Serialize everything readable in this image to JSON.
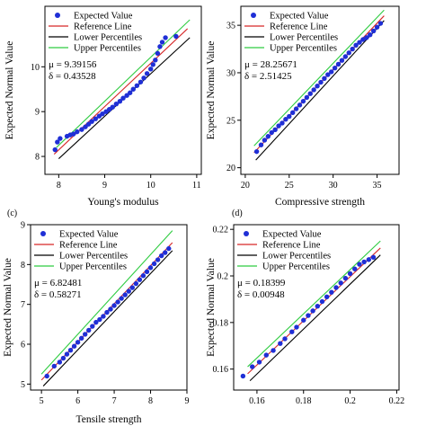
{
  "colors": {
    "points": "#1f2fd6",
    "reference": "#d62728",
    "lower": "#000000",
    "upper": "#2ecc40"
  },
  "chart_data": [
    {
      "type": "scatter",
      "panel_label": "",
      "xlabel": "Young's modulus",
      "ylabel": "Expected Normal Value",
      "xlim": [
        7.7,
        11.1
      ],
      "ylim": [
        7.6,
        11.35
      ],
      "xticks": [
        8,
        9,
        10,
        11
      ],
      "yticks": [
        8,
        9,
        10
      ],
      "legend": [
        "Expected Value",
        "Reference Line",
        "Lower Percentiles",
        "Upper Percentiles"
      ],
      "stats": [
        "μ = 9.39156",
        "δ = 0.43528"
      ],
      "reference_line": [
        [
          7.9,
          8.05
        ],
        [
          10.8,
          10.85
        ]
      ],
      "lower_line": [
        [
          8.0,
          7.95
        ],
        [
          10.85,
          10.65
        ]
      ],
      "upper_line": [
        [
          7.95,
          8.2
        ],
        [
          10.85,
          11.05
        ]
      ],
      "points": [
        [
          7.92,
          8.15
        ],
        [
          7.97,
          8.32
        ],
        [
          8.03,
          8.4
        ],
        [
          8.18,
          8.45
        ],
        [
          8.25,
          8.48
        ],
        [
          8.32,
          8.5
        ],
        [
          8.4,
          8.55
        ],
        [
          8.5,
          8.6
        ],
        [
          8.58,
          8.66
        ],
        [
          8.65,
          8.72
        ],
        [
          8.72,
          8.78
        ],
        [
          8.8,
          8.84
        ],
        [
          8.88,
          8.9
        ],
        [
          8.95,
          8.95
        ],
        [
          9.03,
          9.0
        ],
        [
          9.1,
          9.05
        ],
        [
          9.17,
          9.1
        ],
        [
          9.25,
          9.17
        ],
        [
          9.33,
          9.23
        ],
        [
          9.4,
          9.3
        ],
        [
          9.48,
          9.36
        ],
        [
          9.55,
          9.42
        ],
        [
          9.62,
          9.5
        ],
        [
          9.7,
          9.58
        ],
        [
          9.78,
          9.66
        ],
        [
          9.85,
          9.75
        ],
        [
          9.92,
          9.85
        ],
        [
          10.0,
          9.95
        ],
        [
          10.05,
          10.05
        ],
        [
          10.1,
          10.15
        ],
        [
          10.15,
          10.3
        ],
        [
          10.2,
          10.45
        ],
        [
          10.25,
          10.55
        ],
        [
          10.32,
          10.65
        ],
        [
          10.55,
          10.68
        ]
      ]
    },
    {
      "type": "scatter",
      "panel_label": "",
      "xlabel": "Compressive strength",
      "ylabel": "Expected Normal Value",
      "xlim": [
        19.5,
        37.5
      ],
      "ylim": [
        19.3,
        37.0
      ],
      "xticks": [
        20,
        25,
        30,
        35
      ],
      "yticks": [
        20,
        25,
        30,
        35
      ],
      "legend": [
        "Expected Value",
        "Reference Line",
        "Lower Percentiles",
        "Upper Percentiles"
      ],
      "stats": [
        "μ = 28.25671",
        "δ = 2.51425"
      ],
      "reference_line": [
        [
          21.0,
          21.6
        ],
        [
          35.8,
          36.0
        ]
      ],
      "lower_line": [
        [
          21.2,
          20.8
        ],
        [
          35.8,
          35.5
        ]
      ],
      "upper_line": [
        [
          21.0,
          22.3
        ],
        [
          35.8,
          36.6
        ]
      ],
      "points": [
        [
          21.3,
          21.7
        ],
        [
          21.8,
          22.4
        ],
        [
          22.2,
          22.9
        ],
        [
          22.6,
          23.3
        ],
        [
          23.0,
          23.7
        ],
        [
          23.4,
          24.0
        ],
        [
          23.8,
          24.4
        ],
        [
          24.2,
          24.7
        ],
        [
          24.6,
          25.1
        ],
        [
          25.0,
          25.4
        ],
        [
          25.4,
          25.8
        ],
        [
          25.8,
          26.2
        ],
        [
          26.2,
          26.6
        ],
        [
          26.6,
          27.0
        ],
        [
          27.0,
          27.4
        ],
        [
          27.4,
          27.8
        ],
        [
          27.8,
          28.2
        ],
        [
          28.2,
          28.6
        ],
        [
          28.6,
          29.0
        ],
        [
          29.0,
          29.4
        ],
        [
          29.4,
          29.8
        ],
        [
          29.8,
          30.1
        ],
        [
          30.2,
          30.5
        ],
        [
          30.6,
          30.9
        ],
        [
          31.0,
          31.3
        ],
        [
          31.4,
          31.7
        ],
        [
          31.8,
          32.1
        ],
        [
          32.2,
          32.5
        ],
        [
          32.6,
          32.9
        ],
        [
          33.0,
          33.2
        ],
        [
          33.4,
          33.5
        ],
        [
          33.8,
          33.7
        ],
        [
          34.2,
          34.0
        ],
        [
          34.6,
          34.4
        ],
        [
          35.0,
          34.8
        ],
        [
          35.4,
          35.2
        ]
      ]
    },
    {
      "type": "scatter",
      "panel_label": "(c)",
      "xlabel": "Tensile strength",
      "ylabel": "Expected Normal Value",
      "xlim": [
        4.7,
        9.0
      ],
      "ylim": [
        4.85,
        9.0
      ],
      "xticks": [
        5,
        6,
        7,
        8,
        9
      ],
      "yticks": [
        5,
        6,
        7,
        8,
        9
      ],
      "legend": [
        "Expected Value",
        "Reference Line",
        "Lower Percentiles",
        "Upper Percentiles"
      ],
      "stats": [
        "μ = 6.82481",
        "δ = 0.58271"
      ],
      "reference_line": [
        [
          5.0,
          5.1
        ],
        [
          8.6,
          8.55
        ]
      ],
      "lower_line": [
        [
          5.05,
          4.95
        ],
        [
          8.6,
          8.35
        ]
      ],
      "upper_line": [
        [
          5.0,
          5.25
        ],
        [
          8.6,
          8.85
        ]
      ],
      "points": [
        [
          5.15,
          5.2
        ],
        [
          5.35,
          5.45
        ],
        [
          5.5,
          5.55
        ],
        [
          5.6,
          5.65
        ],
        [
          5.7,
          5.75
        ],
        [
          5.8,
          5.85
        ],
        [
          5.9,
          5.95
        ],
        [
          6.0,
          6.05
        ],
        [
          6.1,
          6.15
        ],
        [
          6.2,
          6.25
        ],
        [
          6.3,
          6.35
        ],
        [
          6.4,
          6.45
        ],
        [
          6.5,
          6.55
        ],
        [
          6.6,
          6.62
        ],
        [
          6.7,
          6.7
        ],
        [
          6.8,
          6.8
        ],
        [
          6.9,
          6.88
        ],
        [
          7.0,
          6.97
        ],
        [
          7.1,
          7.06
        ],
        [
          7.2,
          7.15
        ],
        [
          7.3,
          7.24
        ],
        [
          7.4,
          7.33
        ],
        [
          7.5,
          7.42
        ],
        [
          7.6,
          7.52
        ],
        [
          7.7,
          7.62
        ],
        [
          7.8,
          7.72
        ],
        [
          7.9,
          7.82
        ],
        [
          8.0,
          7.92
        ],
        [
          8.1,
          8.02
        ],
        [
          8.2,
          8.12
        ],
        [
          8.3,
          8.22
        ],
        [
          8.4,
          8.3
        ],
        [
          8.5,
          8.4
        ]
      ]
    },
    {
      "type": "scatter",
      "panel_label": "(d)",
      "xlabel": "",
      "ylabel": "Expected Normal Value",
      "xlim": [
        0.15,
        0.221
      ],
      "ylim": [
        0.151,
        0.222
      ],
      "xticks": [
        0.16,
        0.18,
        0.2,
        0.22
      ],
      "yticks": [
        0.16,
        0.18,
        0.2,
        0.22
      ],
      "legend": [
        "Expected Value",
        "Reference Line",
        "Lower Percentiles",
        "Upper Percentiles"
      ],
      "stats": [
        "μ = 0.18399",
        "δ = 0.00948"
      ],
      "reference_line": [
        [
          0.156,
          0.158
        ],
        [
          0.213,
          0.212
        ]
      ],
      "lower_line": [
        [
          0.157,
          0.155
        ],
        [
          0.213,
          0.209
        ]
      ],
      "upper_line": [
        [
          0.156,
          0.161
        ],
        [
          0.213,
          0.215
        ]
      ],
      "points": [
        [
          0.154,
          0.157
        ],
        [
          0.158,
          0.161
        ],
        [
          0.161,
          0.163
        ],
        [
          0.164,
          0.166
        ],
        [
          0.167,
          0.168
        ],
        [
          0.17,
          0.171
        ],
        [
          0.172,
          0.173
        ],
        [
          0.175,
          0.176
        ],
        [
          0.177,
          0.178
        ],
        [
          0.18,
          0.181
        ],
        [
          0.182,
          0.183
        ],
        [
          0.184,
          0.185
        ],
        [
          0.186,
          0.187
        ],
        [
          0.188,
          0.189
        ],
        [
          0.19,
          0.191
        ],
        [
          0.192,
          0.193
        ],
        [
          0.194,
          0.195
        ],
        [
          0.196,
          0.197
        ],
        [
          0.198,
          0.199
        ],
        [
          0.2,
          0.201
        ],
        [
          0.202,
          0.203
        ],
        [
          0.204,
          0.205
        ],
        [
          0.206,
          0.206
        ],
        [
          0.208,
          0.207
        ],
        [
          0.21,
          0.208
        ]
      ]
    }
  ]
}
